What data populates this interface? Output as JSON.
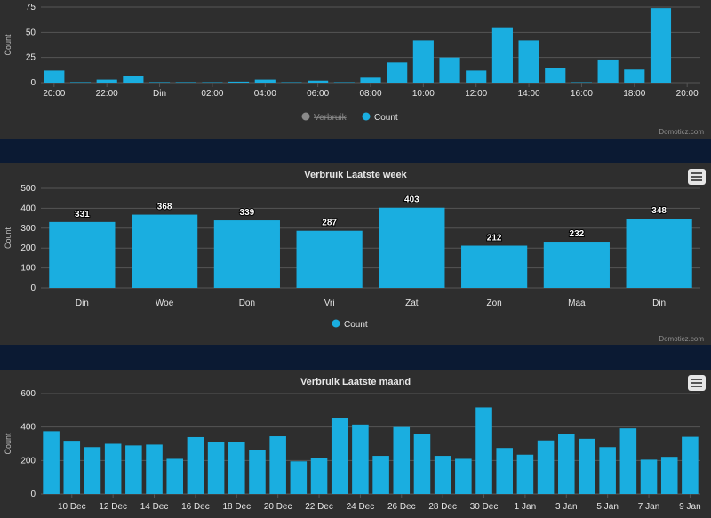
{
  "colors": {
    "bar": "#1aaee0",
    "grid": "#555555",
    "background": "#2e2e2e",
    "legend_off": "#8a8a8a"
  },
  "credit": "Domoticz.com",
  "menu_icon": "hamburger-menu-icon",
  "chart_data": [
    {
      "id": "hourly",
      "type": "bar",
      "title": "",
      "ylabel": "Count",
      "ylim": [
        0,
        75
      ],
      "yticks": [
        0,
        25,
        50,
        75
      ],
      "values": [
        12,
        0.5,
        3,
        7,
        0.5,
        0.5,
        0,
        1,
        3,
        0,
        2,
        0,
        5,
        20,
        42,
        25,
        12,
        55,
        42,
        15,
        0,
        23,
        13,
        74
      ],
      "xticks": [
        {
          "label": "20:00",
          "index": 0
        },
        {
          "label": "22:00",
          "index": 2
        },
        {
          "label": "Din",
          "index": 4
        },
        {
          "label": "02:00",
          "index": 6
        },
        {
          "label": "04:00",
          "index": 8
        },
        {
          "label": "06:00",
          "index": 10
        },
        {
          "label": "08:00",
          "index": 12
        },
        {
          "label": "10:00",
          "index": 14
        },
        {
          "label": "12:00",
          "index": 16
        },
        {
          "label": "14:00",
          "index": 18
        },
        {
          "label": "16:00",
          "index": 20
        },
        {
          "label": "18:00",
          "index": 22
        },
        {
          "label": "20:00",
          "index": 24
        }
      ],
      "legend": [
        {
          "name": "Verbruik",
          "enabled": false
        },
        {
          "name": "Count",
          "enabled": true
        }
      ]
    },
    {
      "id": "week",
      "type": "bar",
      "title": "Verbruik Laatste week",
      "ylabel": "Count",
      "ylim": [
        0,
        500
      ],
      "yticks": [
        0,
        100,
        200,
        300,
        400,
        500
      ],
      "categories": [
        "Din",
        "Woe",
        "Don",
        "Vri",
        "Zat",
        "Zon",
        "Maa",
        "Din"
      ],
      "values": [
        331,
        368,
        339,
        287,
        403,
        212,
        232,
        348
      ],
      "data_labels": true,
      "legend": [
        {
          "name": "Count",
          "enabled": true
        }
      ]
    },
    {
      "id": "month",
      "type": "bar",
      "title": "Verbruik Laatste maand",
      "ylabel": "Count",
      "ylim": [
        0,
        600
      ],
      "yticks": [
        0,
        200,
        400,
        600
      ],
      "values": [
        375,
        318,
        280,
        300,
        290,
        295,
        210,
        340,
        312,
        308,
        265,
        345,
        195,
        215,
        455,
        415,
        228,
        400,
        358,
        228,
        210,
        518,
        275,
        235,
        320,
        358,
        330,
        280,
        392,
        205,
        222,
        342
      ],
      "xticks": [
        {
          "label": "10 Dec",
          "index": 1
        },
        {
          "label": "12 Dec",
          "index": 3
        },
        {
          "label": "14 Dec",
          "index": 5
        },
        {
          "label": "16 Dec",
          "index": 7
        },
        {
          "label": "18 Dec",
          "index": 9
        },
        {
          "label": "20 Dec",
          "index": 11
        },
        {
          "label": "22 Dec",
          "index": 13
        },
        {
          "label": "24 Dec",
          "index": 15
        },
        {
          "label": "26 Dec",
          "index": 17
        },
        {
          "label": "28 Dec",
          "index": 19
        },
        {
          "label": "30 Dec",
          "index": 21
        },
        {
          "label": "1 Jan",
          "index": 23
        },
        {
          "label": "3 Jan",
          "index": 25
        },
        {
          "label": "5 Jan",
          "index": 27
        },
        {
          "label": "7 Jan",
          "index": 29
        },
        {
          "label": "9 Jan",
          "index": 31
        }
      ]
    }
  ]
}
